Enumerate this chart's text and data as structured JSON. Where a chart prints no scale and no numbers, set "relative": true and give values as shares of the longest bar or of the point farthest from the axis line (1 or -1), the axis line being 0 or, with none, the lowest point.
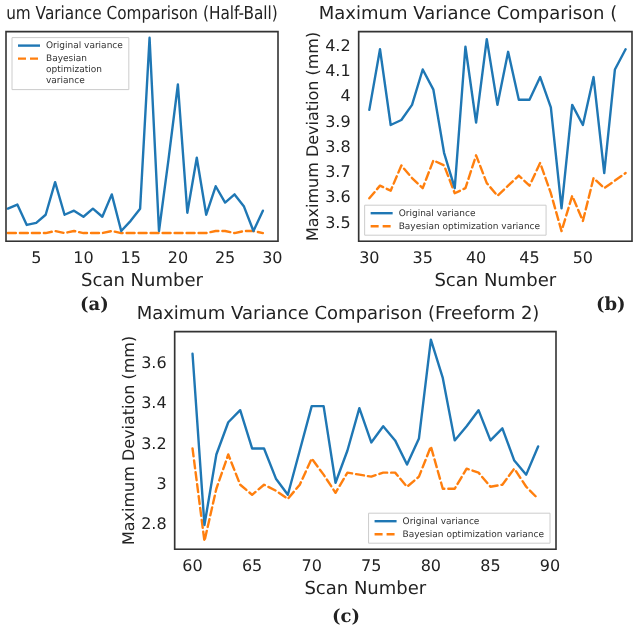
{
  "chart_data": [
    {
      "type": "line",
      "title": "um Variance Comparison (Half-Ball)",
      "xlabel": "Scan Number",
      "relative": true,
      "xlim": [
        1.8,
        30.6
      ],
      "xticks": [
        5,
        10,
        15,
        20,
        25,
        30
      ],
      "legend": "top left",
      "grid": false,
      "marker": "none",
      "annotations": [
        "(a)"
      ],
      "series": [
        {
          "name": "Original variance",
          "color": "#1f77b4",
          "line_style": "solid",
          "x": [
            2,
            3,
            4,
            5,
            6,
            7,
            8,
            9,
            10,
            11,
            12,
            13,
            14,
            15,
            16,
            17,
            18,
            19,
            20,
            21,
            22,
            23,
            24,
            25,
            26,
            27,
            28,
            29
          ],
          "values": [
            0.16,
            0.18,
            0.08,
            0.09,
            0.13,
            0.29,
            0.13,
            0.15,
            0.12,
            0.16,
            0.12,
            0.23,
            0.05,
            0.1,
            0.16,
            1,
            0.05,
            0.4,
            0.77,
            0.14,
            0.41,
            0.13,
            0.27,
            0.19,
            0.23,
            0.17,
            0.05,
            0.15
          ]
        },
        {
          "name": "Bayesian optimization variance",
          "color": "#ff7f0e",
          "line_style": "dashed",
          "x": [
            2,
            3,
            4,
            5,
            6,
            7,
            8,
            9,
            10,
            11,
            12,
            13,
            14,
            15,
            16,
            17,
            18,
            19,
            20,
            21,
            22,
            23,
            24,
            25,
            26,
            27,
            28,
            29
          ],
          "values": [
            0.04,
            0.04,
            0.04,
            0.04,
            0.04,
            0.05,
            0.04,
            0.05,
            0.04,
            0.04,
            0.04,
            0.05,
            0.04,
            0.04,
            0.04,
            0.04,
            0.04,
            0.04,
            0.04,
            0.04,
            0.04,
            0.04,
            0.05,
            0.05,
            0.04,
            0.05,
            0.05,
            0.04
          ]
        }
      ]
    },
    {
      "type": "line",
      "title": "Maximum Variance Comparison (",
      "xlabel": "Scan Number",
      "ylabel": "Maximum Deviation (mm)",
      "xlim": [
        29,
        54.6
      ],
      "xticks": [
        30,
        35,
        40,
        45,
        50
      ],
      "ylim": [
        3.43,
        4.26
      ],
      "yticks": [
        3.5,
        3.6,
        3.7,
        3.8,
        3.9,
        4.0,
        4.1,
        4.2
      ],
      "legend": "bottom left",
      "grid": false,
      "marker": "none",
      "annotations": [
        "(b)"
      ],
      "series": [
        {
          "name": "Original variance",
          "color": "#1f77b4",
          "line_style": "solid",
          "x": [
            30,
            31,
            32,
            33,
            34,
            35,
            36,
            37,
            38,
            39,
            40,
            41,
            42,
            43,
            44,
            45,
            46,
            47,
            48,
            49,
            50,
            51,
            52,
            53,
            54
          ],
          "values": [
            3.95,
            4.19,
            3.89,
            3.91,
            3.97,
            4.11,
            4.03,
            3.78,
            3.64,
            4.2,
            3.9,
            4.23,
            3.97,
            4.18,
            3.99,
            3.99,
            4.08,
            3.96,
            3.56,
            3.97,
            3.89,
            4.08,
            3.7,
            4.11,
            4.19
          ]
        },
        {
          "name": "Bayesian optimization variance",
          "color": "#ff7f0e",
          "line_style": "dashed",
          "x": [
            30,
            31,
            32,
            33,
            34,
            35,
            36,
            37,
            38,
            39,
            40,
            41,
            42,
            43,
            44,
            45,
            46,
            47,
            48,
            49,
            50,
            51,
            52,
            53,
            54
          ],
          "values": [
            3.6,
            3.65,
            3.63,
            3.73,
            3.68,
            3.64,
            3.75,
            3.73,
            3.62,
            3.64,
            3.77,
            3.66,
            3.61,
            3.65,
            3.69,
            3.65,
            3.74,
            3.62,
            3.47,
            3.61,
            3.51,
            3.68,
            3.64,
            3.67,
            3.7
          ]
        }
      ]
    },
    {
      "type": "line",
      "title": "Maximum Variance Comparison (Freeform 2)",
      "xlabel": "Scan Number",
      "ylabel": "Maximum Deviation (mm)",
      "xlim": [
        58.5,
        90.5
      ],
      "xticks": [
        60,
        65,
        70,
        75,
        80,
        85,
        90
      ],
      "ylim": [
        2.68,
        3.76
      ],
      "yticks": [
        2.8,
        3.0,
        3.2,
        3.4,
        3.6
      ],
      "legend": "bottom right",
      "grid": false,
      "marker": "none",
      "annotations": [
        "(c)"
      ],
      "series": [
        {
          "name": "Original variance",
          "color": "#1f77b4",
          "line_style": "solid",
          "x": [
            60,
            61,
            62,
            63,
            64,
            65,
            66,
            67,
            68,
            69,
            70,
            71,
            72,
            73,
            74,
            75,
            76,
            77,
            78,
            79,
            80,
            81,
            82,
            83,
            84,
            85,
            86,
            87,
            88,
            89
          ],
          "values": [
            3.65,
            2.8,
            3.15,
            3.31,
            3.37,
            3.18,
            3.18,
            3.03,
            2.95,
            3.17,
            3.39,
            3.39,
            3.01,
            3.17,
            3.38,
            3.21,
            3.29,
            3.22,
            3.1,
            3.23,
            3.72,
            3.53,
            3.22,
            3.29,
            3.37,
            3.22,
            3.28,
            3.12,
            3.05,
            3.19
          ]
        },
        {
          "name": "Bayesian optimization variance",
          "color": "#ff7f0e",
          "line_style": "dashed",
          "x": [
            60,
            61,
            62,
            63,
            64,
            65,
            66,
            67,
            68,
            69,
            70,
            71,
            72,
            73,
            74,
            75,
            76,
            77,
            78,
            79,
            80,
            81,
            82,
            83,
            84,
            85,
            86,
            87,
            88,
            89
          ],
          "values": [
            3.18,
            2.72,
            2.98,
            3.15,
            3.0,
            2.95,
            3.0,
            2.97,
            2.93,
            3.0,
            3.13,
            3.05,
            2.96,
            3.06,
            3.05,
            3.04,
            3.06,
            3.06,
            2.99,
            3.04,
            3.19,
            2.98,
            2.98,
            3.08,
            3.06,
            2.99,
            3.0,
            3.08,
            2.99,
            2.93
          ]
        }
      ]
    }
  ]
}
